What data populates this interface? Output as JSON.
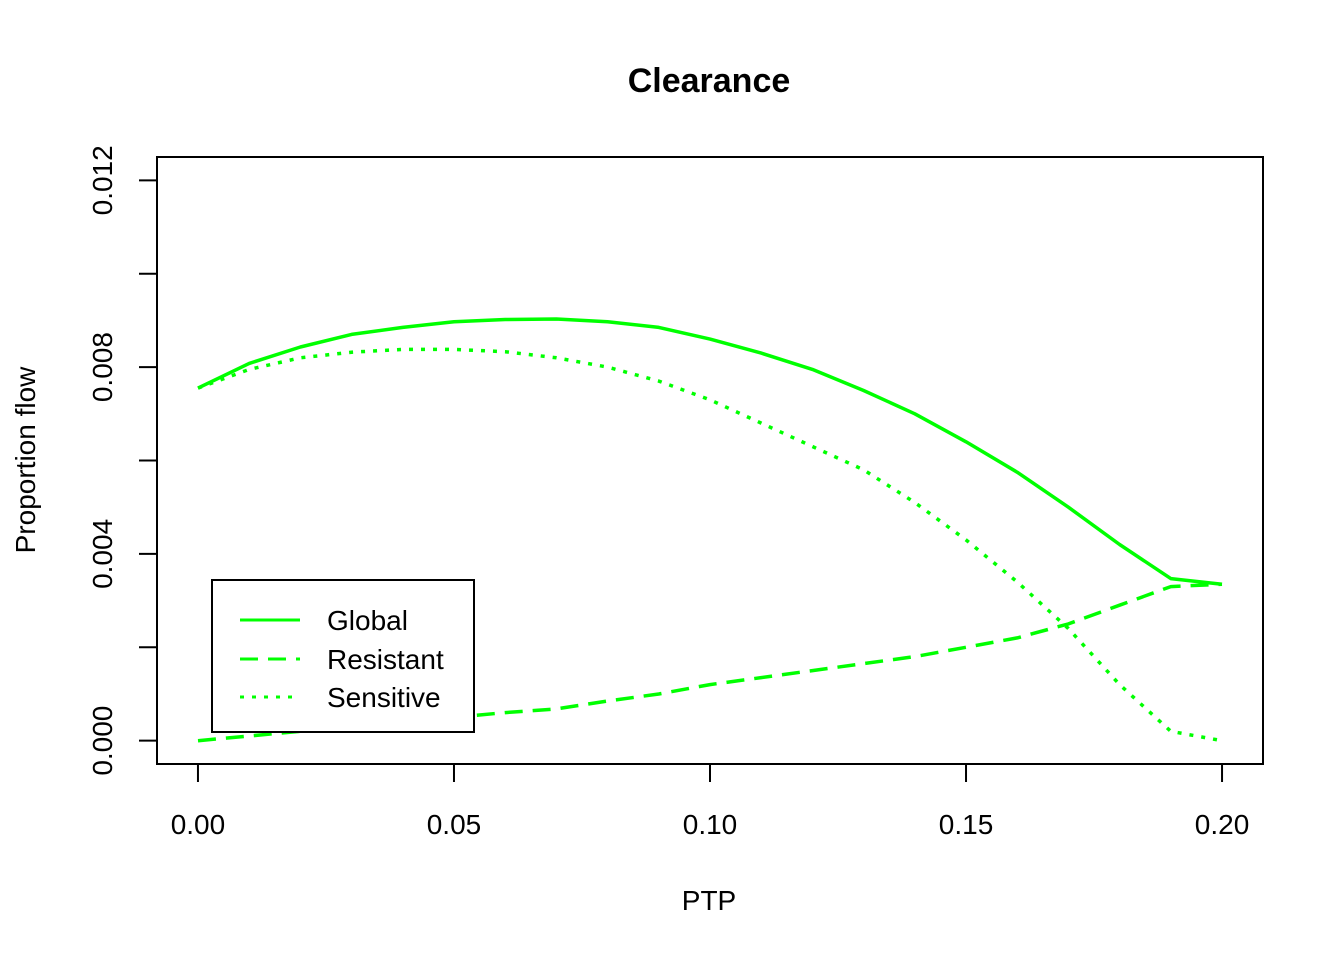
{
  "chart_data": {
    "type": "line",
    "title": "Clearance",
    "xlabel": "PTP",
    "ylabel": "Proportion flow",
    "xlim": [
      -0.008,
      0.208
    ],
    "ylim": [
      -0.0005,
      0.0125
    ],
    "x_ticks": [
      0.0,
      0.05,
      0.1,
      0.15,
      0.2
    ],
    "x_tick_labels": [
      "0.00",
      "0.05",
      "0.10",
      "0.15",
      "0.20"
    ],
    "y_ticks": [
      0.0,
      0.002,
      0.004,
      0.006,
      0.008,
      0.01,
      0.012
    ],
    "y_tick_labels": [
      "0.000",
      "",
      "0.004",
      "",
      "0.008",
      "",
      "0.012"
    ],
    "grid": false,
    "legend_position": "bottom-left",
    "line_color": "#00ff00",
    "series": [
      {
        "name": "Global",
        "dash": "solid",
        "x": [
          0.0,
          0.01,
          0.02,
          0.03,
          0.04,
          0.05,
          0.06,
          0.07,
          0.08,
          0.09,
          0.1,
          0.11,
          0.12,
          0.13,
          0.14,
          0.15,
          0.16,
          0.17,
          0.18,
          0.19,
          0.2
        ],
        "values": [
          0.00755,
          0.00808,
          0.00843,
          0.0087,
          0.00885,
          0.00897,
          0.00902,
          0.00903,
          0.00897,
          0.00885,
          0.0086,
          0.0083,
          0.00795,
          0.0075,
          0.007,
          0.0064,
          0.00575,
          0.005,
          0.0042,
          0.00347,
          0.00335
        ]
      },
      {
        "name": "Resistant",
        "dash": "dashed",
        "x": [
          0.0,
          0.01,
          0.02,
          0.03,
          0.04,
          0.05,
          0.06,
          0.07,
          0.08,
          0.09,
          0.1,
          0.11,
          0.12,
          0.13,
          0.14,
          0.15,
          0.16,
          0.17,
          0.18,
          0.19,
          0.2
        ],
        "values": [
          0.0,
          0.0001,
          0.0002,
          0.0003,
          0.0004,
          0.0005,
          0.0006,
          0.00068,
          0.00085,
          0.001,
          0.0012,
          0.00135,
          0.0015,
          0.00165,
          0.0018,
          0.002,
          0.0022,
          0.0025,
          0.0029,
          0.0033,
          0.00335
        ]
      },
      {
        "name": "Sensitive",
        "dash": "dotted",
        "x": [
          0.0,
          0.01,
          0.02,
          0.03,
          0.04,
          0.05,
          0.06,
          0.07,
          0.08,
          0.09,
          0.1,
          0.11,
          0.12,
          0.13,
          0.14,
          0.15,
          0.16,
          0.17,
          0.18,
          0.19,
          0.2
        ],
        "values": [
          0.00755,
          0.00795,
          0.0082,
          0.00832,
          0.00838,
          0.00838,
          0.00833,
          0.0082,
          0.008,
          0.0077,
          0.0073,
          0.0068,
          0.0063,
          0.0058,
          0.0051,
          0.0043,
          0.0034,
          0.0024,
          0.0012,
          0.0002,
          0.0
        ]
      }
    ]
  }
}
